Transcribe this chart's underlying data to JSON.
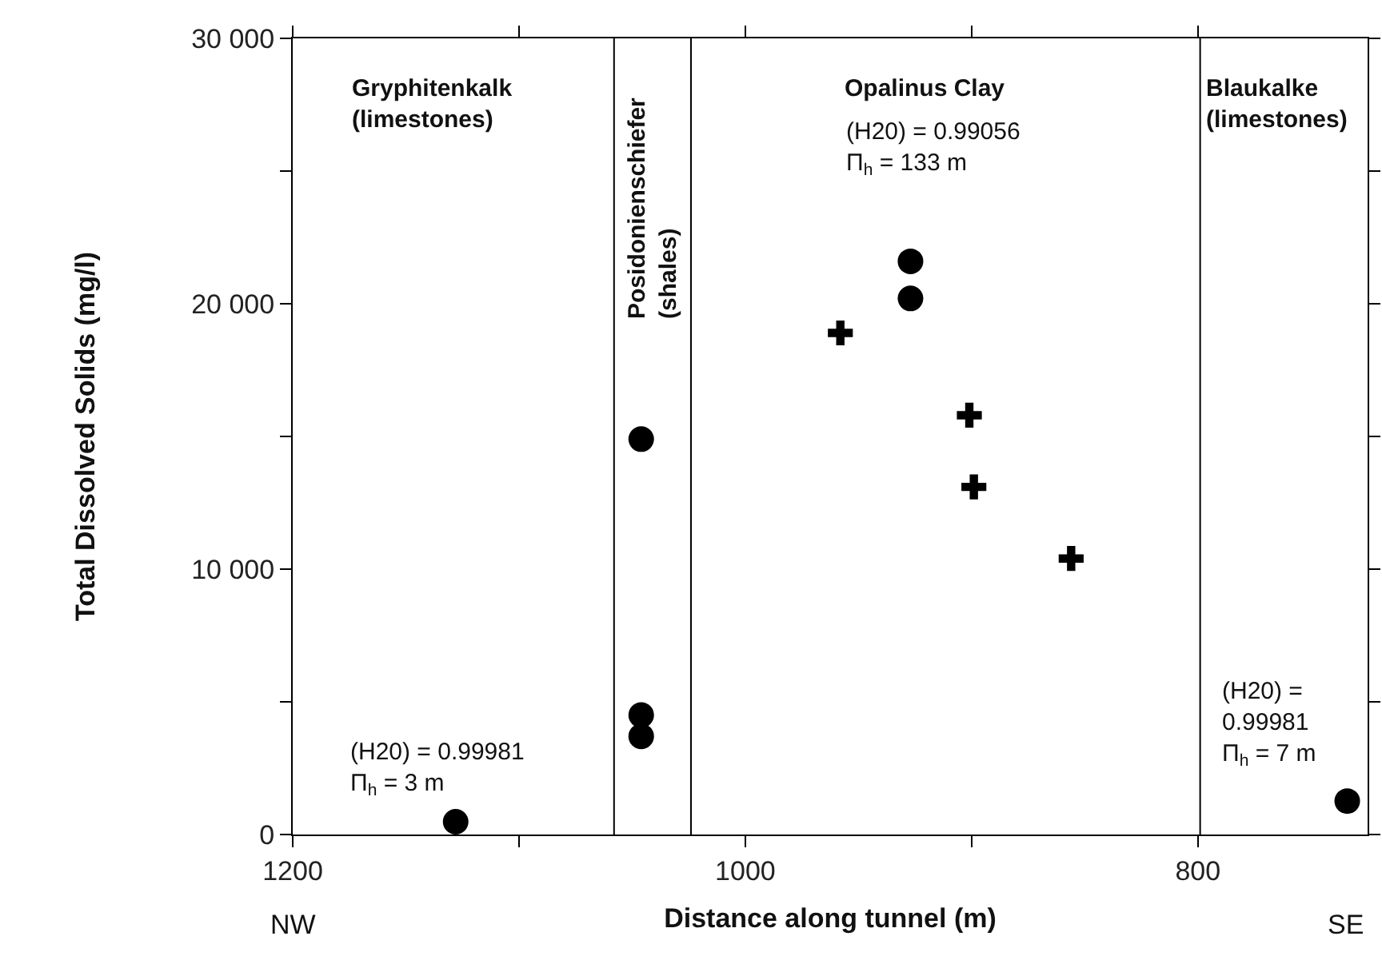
{
  "chart_data": {
    "type": "scatter",
    "xlabel": "Distance along tunnel (m)",
    "ylabel": "Total Dissolved Solids (mg/l)",
    "xlim": [
      1200,
      725
    ],
    "xticks": [
      1200,
      {
        "value": 1100,
        "label": null
      },
      1000,
      {
        "value": 900,
        "label": null
      },
      800
    ],
    "ylim": [
      0,
      30000
    ],
    "yticks": [
      0,
      {
        "value": 5000,
        "label": null
      },
      {
        "value": 10000,
        "label": "10 000"
      },
      {
        "value": 15000,
        "label": null
      },
      {
        "value": 20000,
        "label": "20 000"
      },
      {
        "value": 25000,
        "label": null
      },
      {
        "value": 30000,
        "label": "30 000"
      }
    ],
    "series": [
      {
        "color": "#000000",
        "marker": "circle",
        "x": [
          1128,
          1046,
          1046,
          1046,
          927,
          927,
          734
        ],
        "values": [
          480,
          14900,
          4500,
          3700,
          21600,
          20200,
          1260
        ]
      },
      {
        "color": "#000000",
        "marker": "cross",
        "x": [
          958,
          901,
          899,
          856
        ],
        "values": [
          18900,
          15800,
          13100,
          10400
        ]
      }
    ],
    "ref_lines": [
      {
        "axis": "x",
        "value": 1058,
        "label": null
      },
      {
        "axis": "x",
        "value": 1024,
        "label": null
      },
      {
        "axis": "x",
        "value": 799,
        "label": null
      }
    ],
    "annotations": [
      "Gryphitenkalk\n(limestones)",
      "Posidonienschiefer\n(shales)",
      "Opalinus Clay",
      "Blaukalke\n(limestones)",
      "(H20) = 0.99056\nΠ$_{h}$ = 133 m",
      "(H20) = 0.99981\nΠ$_{h}$ = 3 m",
      "(H20) =\n0.99981\nΠ$_{h}$ = 7 m",
      "NW",
      "SE"
    ],
    "grid": false
  }
}
